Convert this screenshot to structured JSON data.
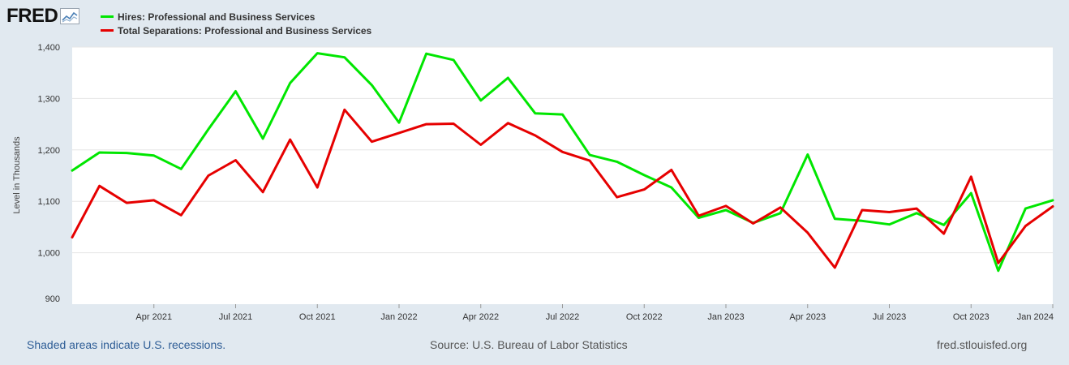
{
  "logo": {
    "text": "FRED"
  },
  "legend": [
    {
      "label": "Hires: Professional and Business Services",
      "color": "#00e600"
    },
    {
      "label": "Total Separations: Professional and Business Services",
      "color": "#e60000"
    }
  ],
  "footer": {
    "recession_note": "Shaded areas indicate U.S. recessions.",
    "source": "Source: U.S. Bureau of Labor Statistics",
    "site": "fred.stlouisfed.org"
  },
  "chart_data": {
    "type": "line",
    "title": "",
    "xlabel": "",
    "ylabel": "Level in Thousands",
    "ylim": [
      900,
      1400
    ],
    "yticks": [
      900,
      1000,
      1100,
      1200,
      1300,
      1400
    ],
    "ytick_labels": [
      "900",
      "1,000",
      "1,100",
      "1,200",
      "1,300",
      "1,400"
    ],
    "x": [
      "2021-01",
      "2021-02",
      "2021-03",
      "2021-04",
      "2021-05",
      "2021-06",
      "2021-07",
      "2021-08",
      "2021-09",
      "2021-10",
      "2021-11",
      "2021-12",
      "2022-01",
      "2022-02",
      "2022-03",
      "2022-04",
      "2022-05",
      "2022-06",
      "2022-07",
      "2022-08",
      "2022-09",
      "2022-10",
      "2022-11",
      "2022-12",
      "2023-01",
      "2023-02",
      "2023-03",
      "2023-04",
      "2023-05",
      "2023-06",
      "2023-07",
      "2023-08",
      "2023-09",
      "2023-10",
      "2023-11",
      "2023-12",
      "2024-01"
    ],
    "xticks": [
      {
        "index": 3,
        "label": "Apr 2021"
      },
      {
        "index": 6,
        "label": "Jul 2021"
      },
      {
        "index": 9,
        "label": "Oct 2021"
      },
      {
        "index": 12,
        "label": "Jan 2022"
      },
      {
        "index": 15,
        "label": "Apr 2022"
      },
      {
        "index": 18,
        "label": "Jul 2022"
      },
      {
        "index": 21,
        "label": "Oct 2022"
      },
      {
        "index": 24,
        "label": "Jan 2023"
      },
      {
        "index": 27,
        "label": "Apr 2023"
      },
      {
        "index": 30,
        "label": "Jul 2023"
      },
      {
        "index": 33,
        "label": "Oct 2023"
      },
      {
        "index": 36,
        "label": "Jan 2024"
      }
    ],
    "series": [
      {
        "name": "Hires: Professional and Business Services",
        "color": "#00e600",
        "values": [
          1160,
          1195,
          1194,
          1189,
          1163,
          1240,
          1314,
          1222,
          1330,
          1388,
          1380,
          1326,
          1253,
          1387,
          1375,
          1296,
          1340,
          1271,
          1269,
          1190,
          1177,
          1151,
          1127,
          1068,
          1083,
          1058,
          1077,
          1191,
          1066,
          1062,
          1055,
          1077,
          1054,
          1116,
          965,
          1086,
          1102
        ]
      },
      {
        "name": "Total Separations: Professional and Business Services",
        "color": "#e60000",
        "values": [
          1030,
          1130,
          1097,
          1102,
          1073,
          1150,
          1180,
          1118,
          1220,
          1127,
          1278,
          1216,
          1233,
          1250,
          1251,
          1210,
          1252,
          1228,
          1196,
          1179,
          1108,
          1123,
          1161,
          1072,
          1091,
          1057,
          1088,
          1039,
          971,
          1083,
          1079,
          1086,
          1037,
          1148,
          980,
          1052,
          1090
        ]
      }
    ]
  }
}
